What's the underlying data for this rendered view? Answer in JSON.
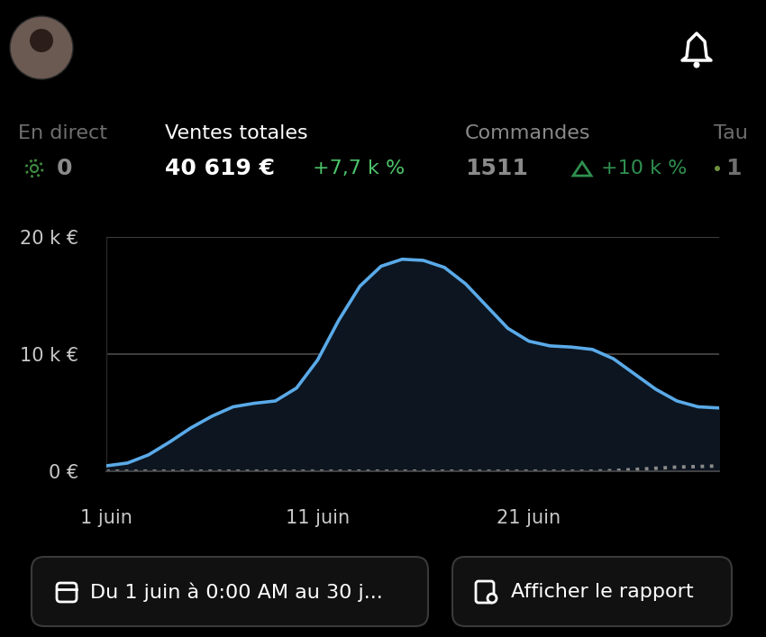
{
  "metrics": [
    {
      "label": "En direct",
      "value": "0"
    },
    {
      "label": "Ventes totales",
      "value": "40 619 €",
      "change": "+7,7 k %"
    },
    {
      "label": "Commandes",
      "value": "1511",
      "change": "+10 k %"
    },
    {
      "label": "Tau",
      "value": "1"
    }
  ],
  "buttons": [
    "Du 1 juin à 0:00 AM au 30 j...",
    "Afficher le rapport"
  ],
  "chart_data": {
    "type": "line",
    "x": [
      1,
      2,
      3,
      4,
      5,
      6,
      7,
      8,
      9,
      10,
      11,
      12,
      13,
      14,
      15,
      16,
      17,
      18,
      19,
      20,
      21,
      22,
      23,
      24,
      25,
      26,
      27,
      28,
      29,
      30
    ],
    "series": [
      {
        "color": "#5aaae8",
        "line_style": "solid",
        "values": [
          460,
          700,
          1400,
          2500,
          3700,
          4700,
          5500,
          5800,
          6000,
          7100,
          9500,
          12900,
          15800,
          17500,
          18100,
          18000,
          17400,
          16000,
          14100,
          12200,
          11100,
          10700,
          10600,
          10400,
          9600,
          8300,
          7000,
          6000,
          5500,
          5400
        ]
      },
      {
        "color": "#8a8a8a",
        "line_style": "dotted",
        "values": [
          0,
          0,
          0,
          0,
          0,
          0,
          0,
          0,
          0,
          0,
          0,
          0,
          0,
          0,
          0,
          0,
          0,
          0,
          0,
          0,
          0,
          0,
          0,
          0,
          50,
          150,
          250,
          350,
          400,
          450
        ]
      }
    ],
    "xlim": [
      1,
      30
    ],
    "xticks": [
      {
        "value": 1,
        "label": "1 juin"
      },
      {
        "value": 11,
        "label": "11 juin"
      },
      {
        "value": 21,
        "label": "21 juin"
      }
    ],
    "ylim": [
      0,
      20000
    ],
    "yticks": [
      {
        "value": 0,
        "label": "0 €"
      },
      {
        "value": 10000,
        "label": "10 k €"
      },
      {
        "value": 20000,
        "label": "20 k €"
      }
    ],
    "grid": true
  }
}
